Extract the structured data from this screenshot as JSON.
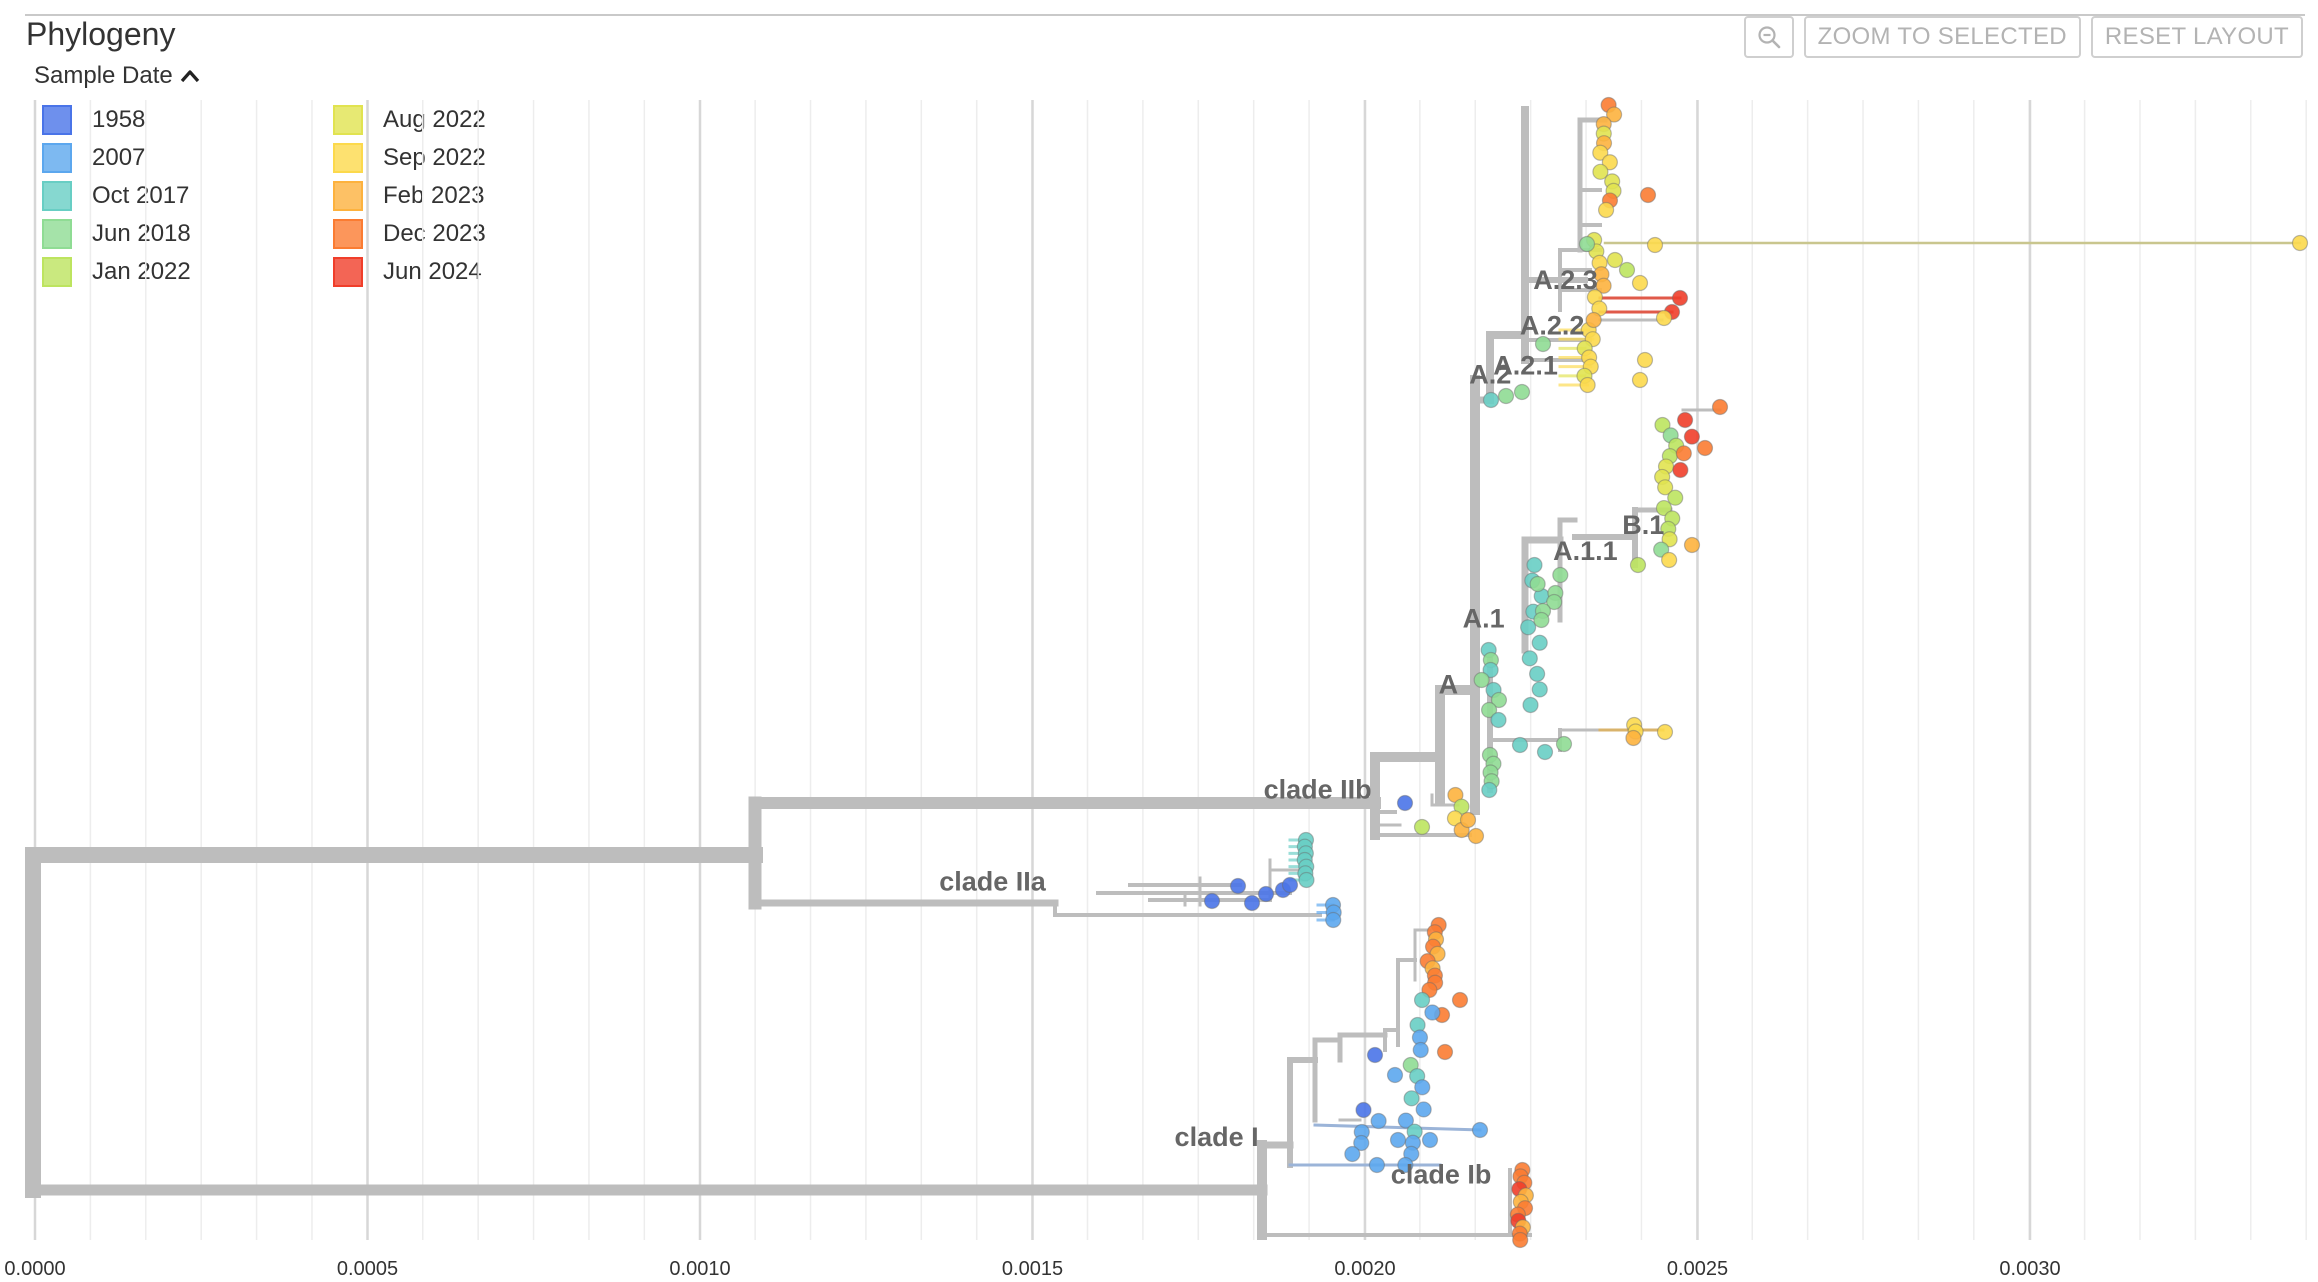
{
  "panel": {
    "title": "Phylogeny",
    "zoom_icon": "magnifier-minus-icon",
    "zoom_selected_label": "ZOOM TO SELECTED",
    "reset_layout_label": "RESET LAYOUT"
  },
  "legend": {
    "title": "Sample Date",
    "collapse_icon": "chevron-up-icon",
    "items": [
      {
        "label": "1958",
        "color": "#4a74e8"
      },
      {
        "label": "2007",
        "color": "#5ca7ee"
      },
      {
        "label": "Oct 2017",
        "color": "#68cec4"
      },
      {
        "label": "Jun 2018",
        "color": "#8fdc94"
      },
      {
        "label": "Jan 2022",
        "color": "#bde45f"
      },
      {
        "label": "Aug 2022",
        "color": "#e1e350"
      },
      {
        "label": "Sep 2022",
        "color": "#fcd94c"
      },
      {
        "label": "Feb 2023",
        "color": "#fdb23e"
      },
      {
        "label": "Dec 2023",
        "color": "#fb7c32"
      },
      {
        "label": "Jun 2024",
        "color": "#f03e2a"
      }
    ]
  },
  "axis": {
    "ticks": [
      {
        "value": 0.0,
        "label": "0.0000"
      },
      {
        "value": 0.0005,
        "label": "0.0005"
      },
      {
        "value": 0.001,
        "label": "0.0010"
      },
      {
        "value": 0.0015,
        "label": "0.0015"
      },
      {
        "value": 0.002,
        "label": "0.0020"
      },
      {
        "value": 0.0025,
        "label": "0.0025"
      },
      {
        "value": 0.003,
        "label": "0.0030"
      }
    ]
  },
  "clades": [
    {
      "label": "A.2.3",
      "divergence": 0.00235,
      "row": 0.17
    },
    {
      "label": "A.2.2",
      "divergence": 0.00233,
      "row": 0.21
    },
    {
      "label": "A.2.1",
      "divergence": 0.00229,
      "row": 0.245
    },
    {
      "label": "A.2",
      "divergence": 0.00222,
      "row": 0.253
    },
    {
      "label": "B.1",
      "divergence": 0.00245,
      "row": 0.385
    },
    {
      "label": "A.1.1",
      "divergence": 0.00238,
      "row": 0.408
    },
    {
      "label": "A.1",
      "divergence": 0.00221,
      "row": 0.467
    },
    {
      "label": "A",
      "divergence": 0.00214,
      "row": 0.525
    },
    {
      "label": "clade IIb",
      "divergence": 0.00201,
      "row": 0.617
    },
    {
      "label": "clade IIa",
      "divergence": 0.00152,
      "row": 0.698
    },
    {
      "label": "clade I",
      "divergence": 0.00184,
      "row": 0.922
    },
    {
      "label": "clade Ib",
      "divergence": 0.00219,
      "row": 0.955
    }
  ]
}
